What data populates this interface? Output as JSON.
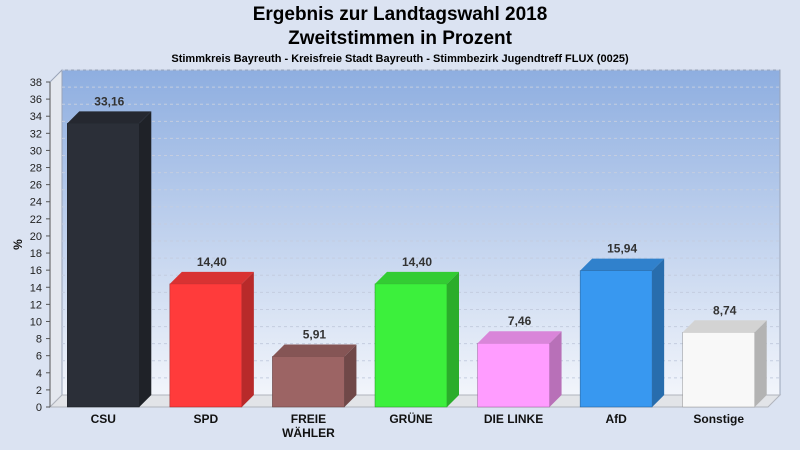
{
  "chart_data": {
    "type": "bar",
    "title": "Ergebnis zur Landtagswahl 2018",
    "title2": "Zweitstimmen in Prozent",
    "subtitle": "Stimmkreis Bayreuth - Kreisfreie Stadt Bayreuth - Stimmbezirk Jugendtreff FLUX (0025)",
    "ylabel": "%",
    "ylim": [
      0,
      38
    ],
    "ytick_step": 2,
    "grid": true,
    "categories": [
      [
        "CSU"
      ],
      [
        "SPD"
      ],
      [
        "FREIE",
        "WÄHLER"
      ],
      [
        "GRÜNE"
      ],
      [
        "DIE LINKE"
      ],
      [
        "AfD"
      ],
      [
        "Sonstige"
      ]
    ],
    "values": [
      33.16,
      14.4,
      5.91,
      14.4,
      7.46,
      15.94,
      8.74
    ],
    "value_labels": [
      "33,16",
      "14,40",
      "5,91",
      "14,40",
      "7,46",
      "15,94",
      "8,74"
    ],
    "colors": [
      "#2b2f38",
      "#ff3b3b",
      "#9c6464",
      "#3cf03c",
      "#ff9cff",
      "#3898f0",
      "#f8f8f8"
    ]
  }
}
